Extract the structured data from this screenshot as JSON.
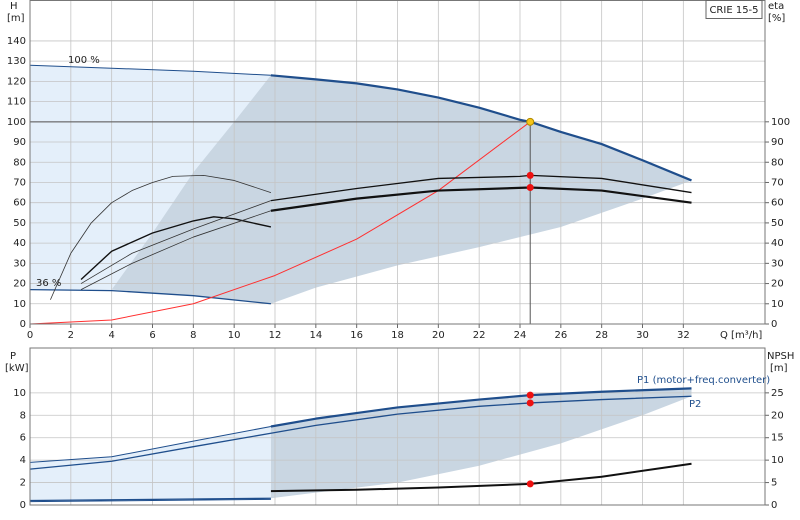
{
  "chart_data": [
    {
      "type": "line",
      "y_label": "H",
      "y_unit": "[m]",
      "y2_label": "eta",
      "y2_unit": "[%]",
      "x_label": "Q [m³/h]",
      "title": "CRIE 15-5",
      "xlim": [
        0,
        36
      ],
      "xticks": [
        0,
        2,
        4,
        6,
        8,
        10,
        12,
        14,
        16,
        18,
        20,
        22,
        24,
        26,
        28,
        30,
        32
      ],
      "ylim": [
        0,
        160
      ],
      "yticks": [
        0,
        10,
        20,
        30,
        40,
        50,
        60,
        70,
        80,
        90,
        100,
        110,
        120,
        130,
        140
      ],
      "y2lim": [
        0,
        160
      ],
      "y2ticks": [
        0,
        10,
        20,
        30,
        40,
        50,
        60,
        70,
        80,
        90,
        100
      ],
      "grid": true,
      "annotations": [
        "100 %",
        "36 %"
      ],
      "areas": [
        {
          "color": "#e4effa",
          "x": [
            0,
            4,
            8,
            11.8,
            11.8,
            8,
            4,
            0
          ],
          "y": [
            128,
            126.5,
            125,
            123,
            10,
            14,
            16.5,
            17
          ]
        },
        {
          "color": "#c9d6e2",
          "x": [
            4,
            6,
            8,
            10,
            11.8,
            14,
            16,
            18,
            20,
            22,
            24,
            26,
            28,
            30,
            32.4,
            30,
            26,
            22,
            18,
            14,
            11.8,
            8
          ],
          "y": [
            17,
            45,
            75,
            100,
            123,
            121,
            119,
            116,
            112,
            107,
            101,
            95,
            89,
            81,
            71,
            62,
            48,
            38,
            29,
            18,
            10,
            14
          ]
        }
      ],
      "series": [
        {
          "color": "#1f4e8c",
          "width": 1,
          "x": [
            0,
            4,
            8,
            11.8
          ],
          "values": [
            128,
            126.5,
            125,
            123
          ]
        },
        {
          "color": "#1f4e8c",
          "width": 2.2,
          "x": [
            11.8,
            14,
            16,
            18,
            20,
            22,
            24,
            24.5,
            26,
            28,
            30,
            32.4
          ],
          "values": [
            123,
            121,
            119,
            116,
            112,
            107,
            101,
            100,
            95,
            89,
            81,
            71
          ]
        },
        {
          "color": "#1f4e8c",
          "width": 1.3,
          "x": [
            0,
            4,
            8,
            11.8
          ],
          "values": [
            17,
            16.5,
            14,
            10
          ]
        },
        {
          "color": "#ff3030",
          "width": 1,
          "x": [
            0,
            4,
            8,
            12,
            16,
            20,
            24.5
          ],
          "values": [
            0,
            2,
            10,
            24,
            42,
            66,
            100
          ]
        },
        {
          "color": "#111111",
          "width": 1.3,
          "axis": "y2",
          "x": [
            11.8,
            16,
            20,
            24,
            24.5,
            28,
            32.4
          ],
          "values": [
            61,
            67,
            72,
            73,
            73.5,
            72,
            65
          ]
        },
        {
          "color": "#111111",
          "width": 2.2,
          "axis": "y2",
          "x": [
            11.8,
            16,
            20,
            24.5,
            28,
            32.4
          ],
          "values": [
            56,
            62,
            66,
            67.5,
            66,
            60
          ]
        },
        {
          "color": "#333333",
          "width": 0.8,
          "axis": "y2",
          "x": [
            1,
            2,
            3,
            4,
            5,
            6,
            7,
            8.5,
            10,
            11.8
          ],
          "values": [
            12,
            35,
            50,
            60,
            66,
            70,
            73,
            73.5,
            71,
            65
          ]
        },
        {
          "color": "#111111",
          "width": 1.4,
          "axis": "y2",
          "x": [
            2.5,
            4,
            6,
            8,
            9,
            10,
            11.8
          ],
          "values": [
            22,
            36,
            45,
            51,
            53,
            52,
            48
          ]
        },
        {
          "color": "#333333",
          "width": 0.8,
          "axis": "y2",
          "x": [
            2.5,
            5,
            8,
            11.8
          ],
          "values": [
            20,
            35,
            47,
            61
          ]
        },
        {
          "color": "#333333",
          "width": 0.8,
          "axis": "y2",
          "x": [
            2.5,
            5,
            8,
            11.8
          ],
          "values": [
            17,
            30,
            43,
            56
          ]
        }
      ],
      "points": [
        {
          "color": "#f5c518",
          "x": 24.5,
          "y": 100
        },
        {
          "color": "#ee1111",
          "x": 24.5,
          "y": 73.5,
          "axis": "y2"
        },
        {
          "color": "#ee1111",
          "x": 24.5,
          "y": 67.5,
          "axis": "y2"
        }
      ]
    },
    {
      "type": "line",
      "y_label": "P",
      "y_unit": "[kW]",
      "y2_label": "NPSH",
      "y2_unit": "[m]",
      "ylim": [
        0,
        14
      ],
      "yticks": [
        0,
        2,
        4,
        6,
        8,
        10
      ],
      "y2lim": [
        0,
        35
      ],
      "y2ticks": [
        0,
        5,
        10,
        15,
        20,
        25
      ],
      "grid": true,
      "areas": [
        {
          "color": "#e4effa",
          "x": [
            0,
            4,
            8,
            11.8,
            11.8,
            0
          ],
          "y": [
            3.8,
            4.3,
            5.7,
            7,
            0.6,
            0.4
          ]
        },
        {
          "color": "#c9d6e2",
          "x": [
            11.8,
            14,
            18,
            22,
            24.5,
            28,
            32.4,
            32.4,
            30,
            26,
            22,
            18,
            14,
            11.8
          ],
          "y": [
            7,
            7.7,
            8.7,
            9.4,
            9.8,
            10.1,
            10.4,
            9.7,
            8,
            5.5,
            3.5,
            2,
            1.1,
            0.6
          ]
        }
      ],
      "series": [
        {
          "name": "P1 (motor+freq.converter)",
          "color": "#1f4e8c",
          "width": 2.2,
          "x": [
            11.8,
            14,
            18,
            22,
            24.5,
            28,
            32.4
          ],
          "values": [
            7,
            7.7,
            8.7,
            9.4,
            9.8,
            10.1,
            10.4
          ]
        },
        {
          "name": "P2",
          "color": "#1f4e8c",
          "width": 1.3,
          "x": [
            0,
            4,
            8,
            11.8,
            14,
            18,
            22,
            24.5,
            28,
            32.4
          ],
          "values": [
            3.2,
            3.9,
            5.2,
            6.4,
            7.1,
            8.1,
            8.8,
            9.1,
            9.4,
            9.7
          ]
        },
        {
          "color": "#1f4e8c",
          "width": 1,
          "x": [
            0,
            4,
            8,
            11.8
          ],
          "values": [
            3.8,
            4.3,
            5.7,
            7
          ]
        },
        {
          "color": "#1f4e8c",
          "width": 1.3,
          "x": [
            0,
            11.8
          ],
          "values": [
            0.4,
            0.6
          ]
        },
        {
          "color": "#1f4e8c",
          "width": 1,
          "x": [
            0,
            11.8
          ],
          "values": [
            0.3,
            0.5
          ]
        },
        {
          "color": "#111111",
          "width": 2,
          "axis": "y2",
          "x": [
            11.8,
            16,
            20,
            24.5,
            28,
            32.4
          ],
          "values": [
            3.1,
            3.4,
            3.9,
            4.7,
            6.3,
            9.2
          ]
        }
      ],
      "points": [
        {
          "color": "#ee1111",
          "x": 24.5,
          "y": 9.8
        },
        {
          "color": "#ee1111",
          "x": 24.5,
          "y": 9.1
        },
        {
          "color": "#ee1111",
          "x": 24.5,
          "y": 4.7,
          "axis": "y2"
        }
      ]
    }
  ]
}
